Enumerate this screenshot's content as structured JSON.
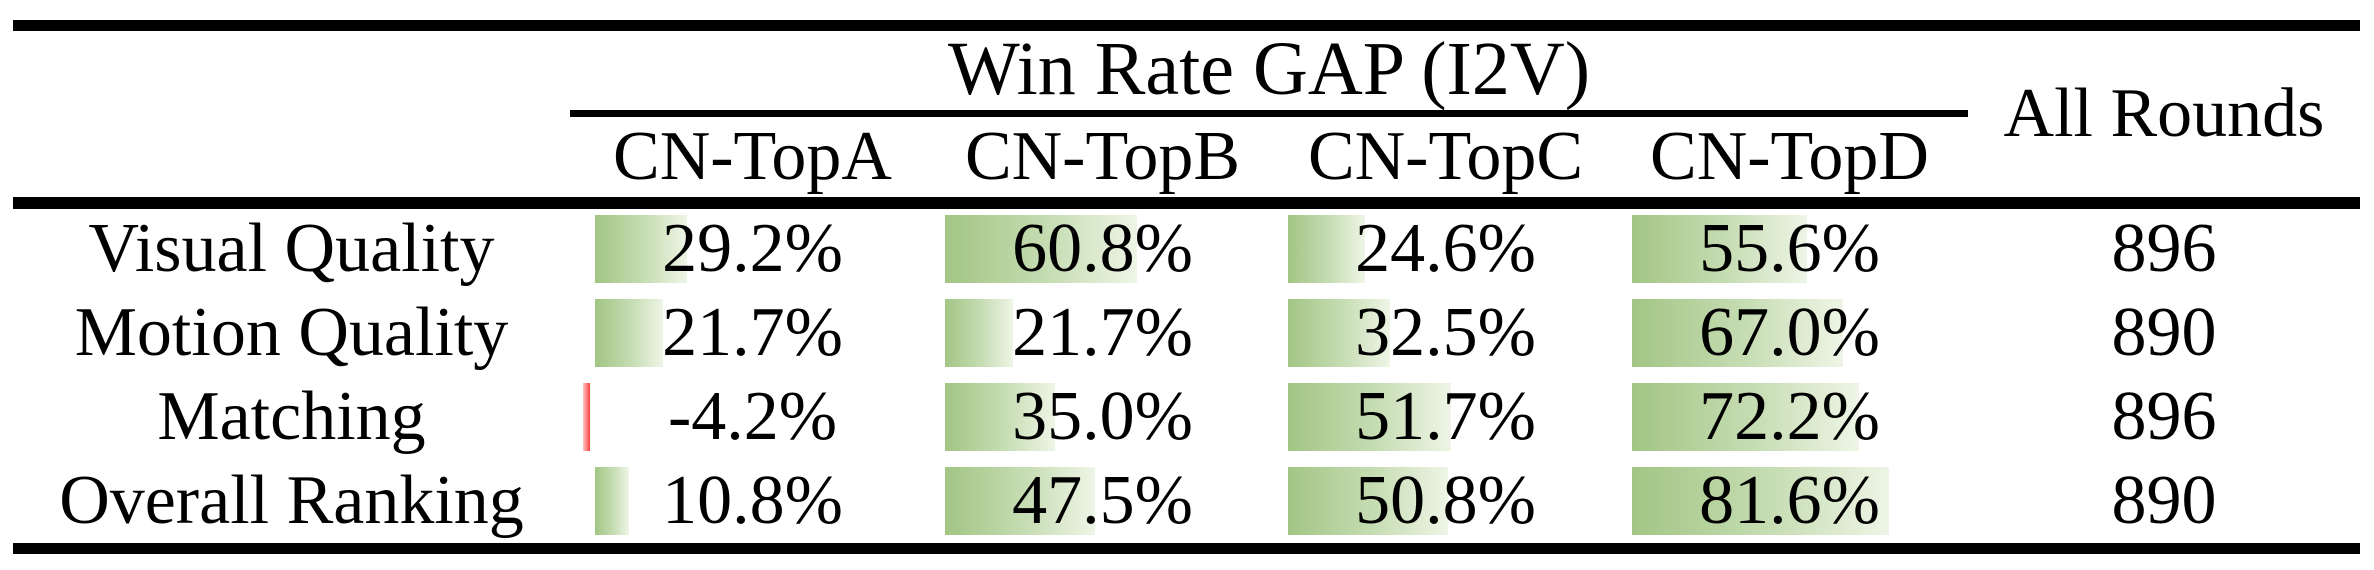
{
  "table": {
    "header": {
      "group_title": "Win Rate GAP (I2V)",
      "all_rounds_label": "All Rounds",
      "columns": [
        "CN-TopA",
        "CN-TopB",
        "CN-TopC",
        "CN-TopD"
      ]
    },
    "rows": [
      {
        "label": "Visual Quality",
        "values": [
          {
            "value": 29.2,
            "display": "29.2%"
          },
          {
            "value": 60.8,
            "display": "60.8%"
          },
          {
            "value": 24.6,
            "display": "24.6%"
          },
          {
            "value": 55.6,
            "display": "55.6%"
          }
        ],
        "rounds": "896"
      },
      {
        "label": "Motion Quality",
        "values": [
          {
            "value": 21.7,
            "display": "21.7%"
          },
          {
            "value": 21.7,
            "display": "21.7%"
          },
          {
            "value": 32.5,
            "display": "32.5%"
          },
          {
            "value": 67.0,
            "display": "67.0%"
          }
        ],
        "rounds": "890"
      },
      {
        "label": "Matching",
        "values": [
          {
            "value": -4.2,
            "display": "-4.2%"
          },
          {
            "value": 35.0,
            "display": "35.0%"
          },
          {
            "value": 51.7,
            "display": "51.7%"
          },
          {
            "value": 72.2,
            "display": "72.2%"
          }
        ],
        "rounds": "896"
      },
      {
        "label": "Overall Ranking",
        "values": [
          {
            "value": 10.8,
            "display": "10.8%"
          },
          {
            "value": 47.5,
            "display": "47.5%"
          },
          {
            "value": 50.8,
            "display": "50.8%"
          },
          {
            "value": 81.6,
            "display": "81.6%"
          }
        ],
        "rounds": "890"
      }
    ]
  },
  "colors": {
    "bar_positive_start": "#a2c584",
    "bar_positive_end": "#eef5e6",
    "bar_negative": "#f03c3c",
    "rule": "#000000",
    "background": "#ffffff"
  },
  "chart_data": {
    "type": "table",
    "title": "Win Rate GAP (I2V)",
    "columns": [
      "CN-TopA",
      "CN-TopB",
      "CN-TopC",
      "CN-TopD",
      "All Rounds"
    ],
    "row_labels": [
      "Visual Quality",
      "Motion Quality",
      "Matching",
      "Overall Ranking"
    ],
    "series": [
      {
        "name": "CN-TopA",
        "values": [
          29.2,
          21.7,
          -4.2,
          10.8
        ]
      },
      {
        "name": "CN-TopB",
        "values": [
          60.8,
          21.7,
          35.0,
          47.5
        ]
      },
      {
        "name": "CN-TopC",
        "values": [
          24.6,
          32.5,
          51.7,
          50.8
        ]
      },
      {
        "name": "CN-TopD",
        "values": [
          55.6,
          67.0,
          72.2,
          81.6
        ]
      }
    ],
    "all_rounds": [
      896,
      890,
      896,
      890
    ],
    "bar_scale": "data bar width = value% of cell width, negative shown as thin red bar"
  }
}
